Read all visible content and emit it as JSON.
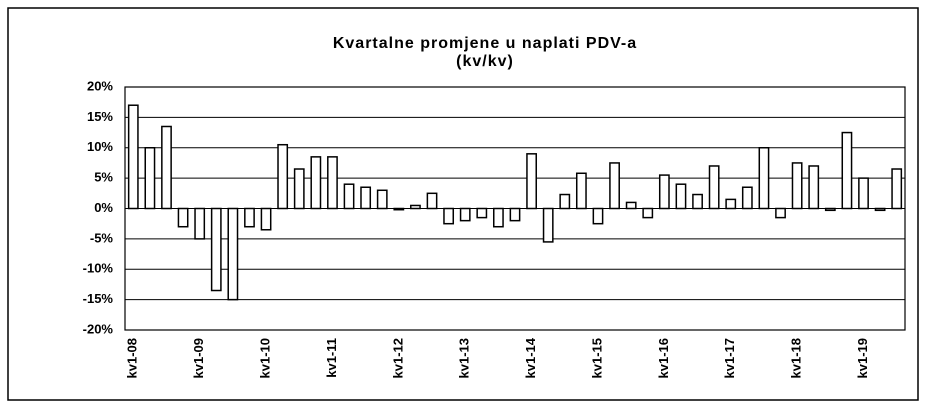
{
  "chart_data": {
    "type": "bar",
    "title": "Kvartalne promjene u naplati PDV-a",
    "subtitle": "(kv/kv)",
    "categories": [
      "kv1-08",
      null,
      null,
      null,
      "kv1-09",
      null,
      null,
      null,
      "kv1-10",
      null,
      null,
      null,
      "kv1-11",
      null,
      null,
      null,
      "kv1-12",
      null,
      null,
      null,
      "kv1-13",
      null,
      null,
      null,
      "kv1-14",
      null,
      null,
      null,
      "kv1-15",
      null,
      null,
      null,
      "kv1-16",
      null,
      null,
      null,
      "kv1-17",
      null,
      null,
      null,
      "kv1-18",
      null,
      null,
      null,
      "kv1-19",
      null,
      null
    ],
    "values": [
      17,
      10,
      13.5,
      -3,
      -5,
      -13.5,
      -15,
      -3,
      -3.5,
      10.5,
      6.5,
      8.5,
      8.5,
      4,
      3.5,
      3,
      -0.2,
      0.5,
      2.5,
      -2.5,
      -2,
      -1.5,
      -3,
      -2,
      9,
      -5.5,
      2.3,
      5.8,
      -2.5,
      7.5,
      1,
      -1.5,
      5.5,
      4,
      2.3,
      7,
      1.5,
      3.5,
      10,
      -1.5,
      7.5,
      7,
      -0.3,
      12.5,
      5,
      -0.3,
      6.5
    ],
    "color": "#ffffff",
    "ylim": [
      -20,
      20
    ],
    "yticks": [
      {
        "value": -20,
        "label": "-20%"
      },
      {
        "value": -15,
        "label": "-15%"
      },
      {
        "value": -10,
        "label": "-10%"
      },
      {
        "value": -5,
        "label": "-5%"
      },
      {
        "value": 0,
        "label": "0%"
      },
      {
        "value": 5,
        "label": "5%"
      },
      {
        "value": 10,
        "label": "10%"
      },
      {
        "value": 15,
        "label": "15%"
      },
      {
        "value": 20,
        "label": "20%"
      }
    ],
    "grid": true
  }
}
